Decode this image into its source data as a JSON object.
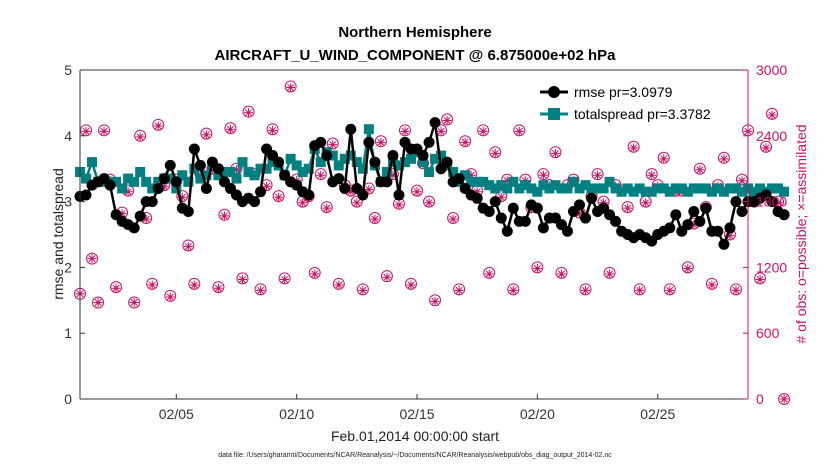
{
  "chart_data": {
    "type": "line",
    "title": "Northern Hemisphere",
    "subtitle": "AIRCRAFT_U_WIND_COMPONENT @ 6.875000e+02 hPa",
    "xlabel": "Feb.01,2014 00:00:00 start",
    "ylabel": "rmse and totalspread",
    "y2label": "# of obs: o=possible; ×=assimilated",
    "footnote": "data file: /Users/gharamti/Documents/NCAR/Reanalysis/~/Documents/NCAR/Reanalysis/webpub/obs_diag_output_2014-02.nc",
    "xlim": [
      1,
      28.75
    ],
    "ylim": [
      0,
      5
    ],
    "y2lim": [
      0,
      3000
    ],
    "x_ticks": [
      5,
      10,
      15,
      20,
      25
    ],
    "x_tick_labels": [
      "02/05",
      "02/10",
      "02/15",
      "02/20",
      "02/25"
    ],
    "y_ticks": [
      "0",
      "1",
      "2",
      "3",
      "4",
      "5"
    ],
    "y2_ticks": [
      "0",
      "600",
      "1200",
      "1800",
      "2400",
      "3000"
    ],
    "x_start": 1.0,
    "x_step": 0.25,
    "legend": {
      "location": "top-right",
      "rmse_label": "rmse pr=3.0979",
      "spread_label": "totalspread pr=3.3782"
    },
    "colors": {
      "rmse": "#000000",
      "spread": "#008080",
      "obs": "#cc1166"
    },
    "series": [
      {
        "name": "rmse",
        "values": [
          3.08,
          3.1,
          3.25,
          3.3,
          3.35,
          3.25,
          2.8,
          2.7,
          2.65,
          2.6,
          2.78,
          3.0,
          3.0,
          3.2,
          3.35,
          3.55,
          3.3,
          2.9,
          2.85,
          3.8,
          3.55,
          3.2,
          3.6,
          3.5,
          3.3,
          3.2,
          3.1,
          3.0,
          3.05,
          3.0,
          3.15,
          3.8,
          3.7,
          3.6,
          3.4,
          3.3,
          3.25,
          3.15,
          3.1,
          3.85,
          3.9,
          3.7,
          3.3,
          3.35,
          3.2,
          4.1,
          3.2,
          3.1,
          3.9,
          3.6,
          3.3,
          3.3,
          3.7,
          3.1,
          3.9,
          3.8,
          3.8,
          3.7,
          3.9,
          4.2,
          3.5,
          3.6,
          3.3,
          3.35,
          3.2,
          3.1,
          3.05,
          2.9,
          2.85,
          3.0,
          2.75,
          2.55,
          2.9,
          2.7,
          2.7,
          2.95,
          2.9,
          2.6,
          2.75,
          2.75,
          2.65,
          2.55,
          2.85,
          2.95,
          2.75,
          3.05,
          2.85,
          2.9,
          2.8,
          2.7,
          2.55,
          2.5,
          2.45,
          2.5,
          2.45,
          2.4,
          2.5,
          2.55,
          2.6,
          2.8,
          2.55,
          2.65,
          2.85,
          2.7,
          2.9,
          2.55,
          2.55,
          2.35,
          2.6,
          3.0,
          2.85,
          3.0,
          3.0,
          3.05,
          3.1,
          3.0,
          2.85,
          2.8
        ]
      },
      {
        "name": "totalspread",
        "values": [
          3.45,
          3.35,
          3.6,
          3.3,
          3.3,
          3.3,
          3.3,
          3.2,
          3.35,
          3.3,
          3.45,
          3.3,
          3.2,
          3.3,
          3.35,
          3.35,
          3.2,
          3.4,
          3.3,
          3.5,
          3.35,
          3.4,
          3.55,
          3.4,
          3.45,
          3.45,
          3.35,
          3.6,
          3.45,
          3.4,
          3.5,
          3.5,
          3.6,
          3.55,
          3.4,
          3.65,
          3.55,
          3.45,
          3.5,
          3.8,
          3.6,
          3.75,
          3.7,
          3.55,
          3.65,
          3.7,
          3.6,
          3.5,
          4.1,
          3.55,
          3.3,
          3.45,
          3.6,
          3.55,
          3.6,
          3.65,
          3.75,
          3.6,
          3.45,
          3.65,
          3.7,
          3.55,
          3.45,
          3.3,
          3.4,
          3.3,
          3.3,
          3.3,
          3.25,
          3.2,
          3.25,
          3.2,
          3.3,
          3.2,
          3.25,
          3.2,
          3.15,
          3.25,
          3.2,
          3.25,
          3.2,
          3.2,
          3.3,
          3.2,
          3.25,
          3.2,
          3.2,
          3.2,
          3.3,
          3.2,
          3.15,
          3.2,
          3.15,
          3.2,
          3.15,
          3.15,
          3.2,
          3.2,
          3.15,
          3.2,
          3.2,
          3.15,
          3.2,
          3.2,
          3.2,
          3.15,
          3.2,
          3.15,
          3.2,
          3.2,
          3.15,
          3.2,
          3.15,
          3.2,
          3.15,
          3.2,
          3.2,
          3.15
        ]
      },
      {
        "name": "obs_possible",
        "values": [
          960,
          2450,
          1280,
          880,
          2450,
          2000,
          1020,
          1700,
          1900,
          880,
          2400,
          1650,
          1050,
          2500,
          1950,
          940,
          2000,
          1850,
          1400,
          1050,
          2050,
          2420,
          2100,
          1020,
          1680,
          2470,
          2100,
          1100,
          2620,
          2050,
          1000,
          1950,
          2460,
          1850,
          1100,
          2850,
          2000,
          1800,
          1850,
          1150,
          2050,
          1750,
          2330,
          1050,
          1950,
          1900,
          1800,
          1000,
          1920,
          1650,
          2350,
          1120,
          2050,
          1780,
          2450,
          1050,
          1900,
          2150,
          1800,
          900,
          2450,
          2550,
          1650,
          1000,
          2350,
          2050,
          1900,
          2450,
          1150,
          2250,
          1850,
          2000,
          1000,
          2450,
          2000,
          1750,
          1200,
          2050,
          1950,
          2250,
          1150,
          1950,
          2000,
          1700,
          1000,
          1850,
          2050,
          1800,
          1150,
          1950,
          1900,
          1750,
          2300,
          1000,
          1800,
          2050,
          1950,
          2200,
          1000,
          1900,
          1900,
          1200,
          1600,
          2100,
          1750,
          1050,
          1950,
          2200,
          1500,
          1000,
          2000,
          2450,
          1800,
          1100,
          2300,
          2600,
          1800,
          0
        ]
      },
      {
        "name": "obs_assimilated",
        "values": [
          960,
          2440,
          1280,
          880,
          2440,
          1990,
          1010,
          1690,
          1890,
          880,
          2390,
          1640,
          1040,
          2490,
          1940,
          930,
          1990,
          1840,
          1390,
          1040,
          2040,
          2410,
          2090,
          1010,
          1670,
          2460,
          2090,
          1090,
          2610,
          2040,
          990,
          1940,
          2450,
          1840,
          1090,
          2840,
          1990,
          1790,
          1840,
          1140,
          2040,
          1740,
          2320,
          1040,
          1940,
          1890,
          1790,
          990,
          1910,
          1640,
          2340,
          1110,
          2040,
          1770,
          2440,
          1040,
          1890,
          2140,
          1790,
          890,
          2440,
          2540,
          1640,
          990,
          2340,
          2040,
          1890,
          2440,
          1140,
          2240,
          1840,
          1990,
          990,
          2440,
          1990,
          1740,
          1190,
          2040,
          1940,
          2240,
          1140,
          1940,
          1990,
          1690,
          990,
          1840,
          2040,
          1790,
          1140,
          1940,
          1890,
          1740,
          2290,
          990,
          1790,
          2040,
          1940,
          2190,
          990,
          1890,
          1890,
          1190,
          1590,
          2090,
          1740,
          1040,
          1940,
          2190,
          1490,
          990,
          1990,
          2440,
          1790,
          1090,
          2290,
          2590,
          1790,
          0
        ]
      }
    ]
  }
}
